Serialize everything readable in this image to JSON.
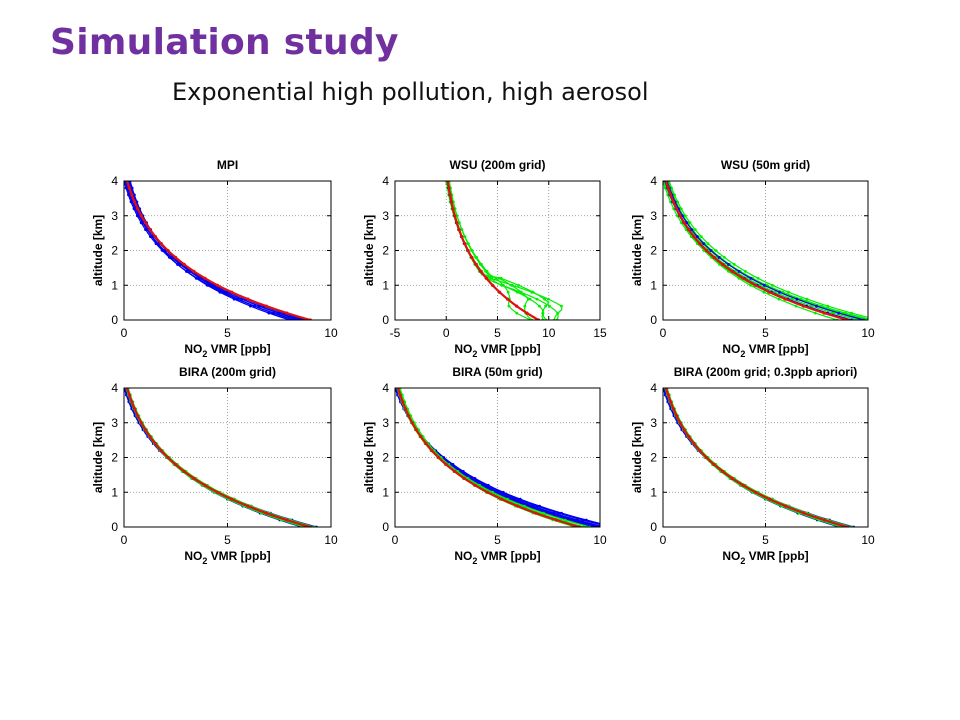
{
  "title": "Simulation study",
  "subtitle": "Exponential high pollution, high aerosol",
  "colors": {
    "title": "#7030A0",
    "blue": "#0000EE",
    "green": "#00EE00",
    "red": "#E01010"
  },
  "chart_data": [
    {
      "type": "line",
      "title": "MPI",
      "xlabel_pre": "NO",
      "xlabel_sub": "2",
      "xlabel_post": " VMR [ppb]",
      "ylabel": "altitude [km]",
      "xlim": [
        0,
        10
      ],
      "ylim": [
        0,
        4
      ],
      "xticks": [
        "0",
        "5",
        "10"
      ],
      "yticks": [
        "0",
        "1",
        "2",
        "3",
        "4"
      ],
      "grid": true,
      "series": [
        {
          "color": "blue",
          "curves": [
            {
              "x0": 8.3,
              "x4": 0.0
            },
            {
              "x0": 8.6,
              "x4": 0.05
            },
            {
              "x0": 8.9,
              "x4": 0.1
            },
            {
              "x0": 8.0,
              "x4": 0.15
            },
            {
              "x0": 8.8,
              "x4": 0.2
            },
            {
              "x0": 8.5,
              "x4": 0.25
            },
            {
              "x0": 8.2,
              "x4": 0.3
            },
            {
              "x0": 9.0,
              "x4": 0.1
            }
          ]
        },
        {
          "color": "red",
          "curves": [
            {
              "x0": 9.0,
              "x4": 0.15
            }
          ]
        }
      ]
    },
    {
      "type": "line",
      "title": "WSU (200m grid)",
      "xlabel_pre": "NO",
      "xlabel_sub": "2",
      "xlabel_post": " VMR [ppb]",
      "ylabel": "altitude [km]",
      "xlim": [
        -5,
        15
      ],
      "ylim": [
        0,
        4
      ],
      "xticks": [
        "-5",
        "0",
        "5",
        "10",
        "15"
      ],
      "yticks": [
        "0",
        "1",
        "2",
        "3",
        "4"
      ],
      "grid": true,
      "series": [
        {
          "color": "green",
          "curves": [
            {
              "x0": 9.5,
              "x4": 0.0,
              "lowx": 10.0,
              "lowy": 0.5
            },
            {
              "x0": 9.0,
              "x4": 0.1,
              "lowx": 11.5,
              "lowy": 0.35
            },
            {
              "x0": 8.5,
              "x4": 0.2,
              "lowx": 8.0,
              "lowy": 0.6
            },
            {
              "x0": 10.0,
              "x4": 0.3,
              "lowx": 11.0,
              "lowy": 0.15
            },
            {
              "x0": 9.2,
              "x4": 0.15,
              "lowx": 9.5,
              "lowy": 0.25
            },
            {
              "x0": 10.5,
              "x4": 0.25,
              "lowx": 6.0,
              "lowy": 0.45
            }
          ]
        },
        {
          "color": "blue",
          "curves": [
            {
              "x0": 9.0,
              "x4": 0.1
            }
          ]
        },
        {
          "color": "red",
          "curves": [
            {
              "x0": 9.0,
              "x4": 0.15
            }
          ]
        }
      ]
    },
    {
      "type": "line",
      "title": "WSU (50m grid)",
      "xlabel_pre": "NO",
      "xlabel_sub": "2",
      "xlabel_post": " VMR [ppb]",
      "ylabel": "altitude [km]",
      "xlim": [
        0,
        10
      ],
      "ylim": [
        0,
        4
      ],
      "xticks": [
        "0",
        "5",
        "10"
      ],
      "yticks": [
        "0",
        "1",
        "2",
        "3",
        "4"
      ],
      "grid": true,
      "series": [
        {
          "color": "green",
          "curves": [
            {
              "x0": 9.0,
              "x4": 0.0
            },
            {
              "x0": 9.5,
              "x4": 0.1
            },
            {
              "x0": 10.0,
              "x4": 0.2
            },
            {
              "x0": 10.5,
              "x4": 0.3
            },
            {
              "x0": 8.5,
              "x4": 0.15
            },
            {
              "x0": 9.8,
              "x4": 0.25
            },
            {
              "x0": 10.2,
              "x4": 0.05
            }
          ]
        },
        {
          "color": "blue",
          "curves": [
            {
              "x0": 9.2,
              "x4": 0.1
            },
            {
              "x0": 9.8,
              "x4": 0.2
            }
          ]
        },
        {
          "color": "red",
          "curves": [
            {
              "x0": 9.0,
              "x4": 0.15
            }
          ]
        }
      ]
    },
    {
      "type": "line",
      "title": "BIRA (200m grid)",
      "xlabel_pre": "NO",
      "xlabel_sub": "2",
      "xlabel_post": " VMR [ppb]",
      "ylabel": "altitude [km]",
      "xlim": [
        0,
        10
      ],
      "ylim": [
        0,
        4
      ],
      "xticks": [
        "0",
        "5",
        "10"
      ],
      "yticks": [
        "0",
        "1",
        "2",
        "3",
        "4"
      ],
      "grid": true,
      "series": [
        {
          "color": "blue",
          "curves": [
            {
              "x0": 9.2,
              "x4": 0.0
            },
            {
              "x0": 9.0,
              "x4": 0.1
            },
            {
              "x0": 8.8,
              "x4": 0.15
            },
            {
              "x0": 9.3,
              "x4": 0.05
            },
            {
              "x0": 8.6,
              "x4": 0.2
            },
            {
              "x0": 9.1,
              "x4": 0.1
            }
          ]
        },
        {
          "color": "green",
          "curves": [
            {
              "x0": 9.0,
              "x4": 0.1
            },
            {
              "x0": 8.7,
              "x4": 0.15
            },
            {
              "x0": 9.2,
              "x4": 0.2
            }
          ]
        },
        {
          "color": "red",
          "curves": [
            {
              "x0": 9.0,
              "x4": 0.15
            }
          ]
        }
      ]
    },
    {
      "type": "line",
      "title": "BIRA (50m grid)",
      "xlabel_pre": "NO",
      "xlabel_sub": "2",
      "xlabel_post": " VMR [ppb]",
      "ylabel": "altitude [km]",
      "xlim": [
        0,
        10
      ],
      "ylim": [
        0,
        4
      ],
      "xticks": [
        "0",
        "5",
        "10"
      ],
      "yticks": [
        "0",
        "1",
        "2",
        "3",
        "4"
      ],
      "grid": true,
      "series": [
        {
          "color": "blue",
          "curves": [
            {
              "x0": 10.5,
              "x4": 0.0
            },
            {
              "x0": 10.2,
              "x4": 0.05
            },
            {
              "x0": 9.8,
              "x4": 0.1
            },
            {
              "x0": 10.7,
              "x4": 0.0
            },
            {
              "x0": 10.0,
              "x4": 0.08
            },
            {
              "x0": 9.6,
              "x4": 0.12
            }
          ]
        },
        {
          "color": "green",
          "curves": [
            {
              "x0": 9.0,
              "x4": 0.1
            },
            {
              "x0": 9.5,
              "x4": 0.15
            },
            {
              "x0": 8.8,
              "x4": 0.2
            },
            {
              "x0": 9.2,
              "x4": 0.25
            }
          ]
        },
        {
          "color": "red",
          "curves": [
            {
              "x0": 9.0,
              "x4": 0.15
            }
          ]
        }
      ]
    },
    {
      "type": "line",
      "title": "BIRA (200m grid; 0.3ppb apriori)",
      "xlabel_pre": "NO",
      "xlabel_sub": "2",
      "xlabel_post": " VMR [ppb]",
      "ylabel": "altitude [km]",
      "xlim": [
        0,
        10
      ],
      "ylim": [
        0,
        4
      ],
      "xticks": [
        "0",
        "5",
        "10"
      ],
      "yticks": [
        "0",
        "1",
        "2",
        "3",
        "4"
      ],
      "grid": true,
      "series": [
        {
          "color": "blue",
          "curves": [
            {
              "x0": 9.2,
              "x4": 0.0
            },
            {
              "x0": 9.0,
              "x4": 0.1
            },
            {
              "x0": 8.8,
              "x4": 0.15
            },
            {
              "x0": 9.3,
              "x4": 0.05
            },
            {
              "x0": 8.6,
              "x4": 0.2
            },
            {
              "x0": 9.1,
              "x4": 0.1
            }
          ]
        },
        {
          "color": "green",
          "curves": [
            {
              "x0": 9.0,
              "x4": 0.1
            },
            {
              "x0": 8.7,
              "x4": 0.15
            },
            {
              "x0": 9.2,
              "x4": 0.2
            }
          ]
        },
        {
          "color": "red",
          "curves": [
            {
              "x0": 9.0,
              "x4": 0.15
            }
          ]
        }
      ]
    }
  ]
}
